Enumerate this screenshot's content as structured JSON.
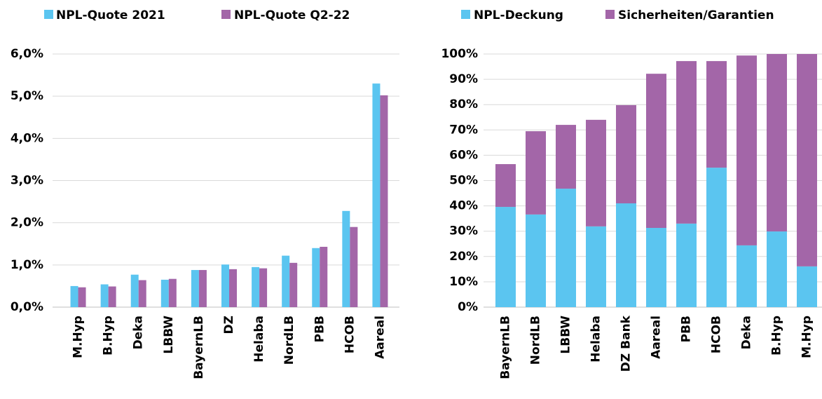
{
  "chart_data": [
    {
      "type": "bar",
      "categories": [
        "M.Hyp",
        "B.Hyp",
        "Deka",
        "LBBW",
        "BayernLB",
        "DZ",
        "Helaba",
        "NordLB",
        "PBB",
        "HCOB",
        "Aareal"
      ],
      "series": [
        {
          "name": "NPL-Quote 2021",
          "color": "#5bc5f0",
          "values": [
            0.5,
            0.54,
            0.77,
            0.65,
            0.88,
            1.01,
            0.95,
            1.22,
            1.4,
            2.28,
            5.3
          ]
        },
        {
          "name": "NPL-Quote Q2-22",
          "color": "#a366a8",
          "values": [
            0.47,
            0.49,
            0.64,
            0.67,
            0.88,
            0.9,
            0.92,
            1.05,
            1.43,
            1.9,
            5.02
          ]
        }
      ],
      "ylim": [
        0,
        6
      ],
      "yticks": [
        {
          "value": 0,
          "label": "0,0%"
        },
        {
          "value": 1,
          "label": "1,0%"
        },
        {
          "value": 2,
          "label": "2,0%"
        },
        {
          "value": 3,
          "label": "3,0%"
        },
        {
          "value": 4,
          "label": "4,0%"
        },
        {
          "value": 5,
          "label": "5,0%"
        },
        {
          "value": 6,
          "label": "6,0%"
        }
      ],
      "grid": true
    },
    {
      "type": "stacked_bar",
      "categories": [
        "BayernLB",
        "NordLB",
        "LBBW",
        "Helaba",
        "DZ Bank",
        "Aareal",
        "PBB",
        "HCOB",
        "Deka",
        "B.Hyp",
        "M.Hyp"
      ],
      "series": [
        {
          "name": "NPL-Deckung",
          "color": "#5bc5f0",
          "values": [
            39.6,
            36.6,
            46.8,
            31.9,
            41,
            31.3,
            33,
            55.1,
            24.4,
            29.9,
            16.1
          ]
        },
        {
          "name": "Sicherheiten/Garantien",
          "color": "#a366a8",
          "values": [
            16.9,
            32.9,
            25.2,
            42.1,
            38.8,
            60.9,
            64.2,
            42.1,
            75,
            70.1,
            83.9
          ]
        }
      ],
      "ylim": [
        0,
        100
      ],
      "yticks": [
        {
          "value": 0,
          "label": "0%"
        },
        {
          "value": 10,
          "label": "10%"
        },
        {
          "value": 20,
          "label": "20%"
        },
        {
          "value": 30,
          "label": "30%"
        },
        {
          "value": 40,
          "label": "40%"
        },
        {
          "value": 50,
          "label": "50%"
        },
        {
          "value": 60,
          "label": "60%"
        },
        {
          "value": 70,
          "label": "70%"
        },
        {
          "value": 80,
          "label": "80%"
        },
        {
          "value": 90,
          "label": "90%"
        },
        {
          "value": 100,
          "label": "100%"
        }
      ],
      "grid": true
    }
  ]
}
